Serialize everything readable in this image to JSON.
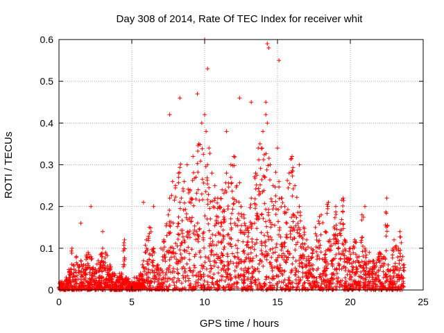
{
  "chart_data": {
    "type": "scatter",
    "title": "Day 308 of 2014, Rate Of TEC Index for receiver whit",
    "xlabel": "GPS time / hours",
    "ylabel": "ROTI / TECUs",
    "xlim": [
      0,
      25
    ],
    "ylim": [
      0,
      0.6
    ],
    "xticks": [
      0,
      5,
      10,
      15,
      20,
      25
    ],
    "yticks": [
      0,
      0.1,
      0.2,
      0.3,
      0.4,
      0.5,
      0.6
    ],
    "xtick_labels": [
      "0",
      "5",
      "10",
      "15",
      "20",
      "25"
    ],
    "ytick_labels": [
      "0",
      "0.1",
      "0.2",
      "0.3",
      "0.4",
      "0.5",
      "0.6"
    ],
    "grid": true,
    "marker": "+",
    "marker_color": "#ff0000",
    "series": [
      {
        "name": "ROTI",
        "x": [
          0.2,
          0.5,
          0.8,
          1.0,
          1.2,
          1.5,
          1.7,
          2.0,
          2.2,
          2.5,
          2.7,
          3.0,
          3.2,
          3.5,
          3.7,
          4.0,
          4.3,
          4.6,
          5.0,
          5.3,
          5.6,
          5.8,
          6.0,
          6.2,
          6.5,
          6.8,
          7.0,
          7.2,
          7.5,
          7.6,
          7.8,
          8.0,
          8.2,
          8.4,
          8.6,
          8.8,
          9.0,
          9.2,
          9.4,
          9.6,
          9.8,
          10.0,
          10.1,
          10.2,
          10.3,
          10.5,
          10.7,
          10.9,
          11.0,
          11.2,
          11.5,
          11.8,
          12.0,
          12.2,
          12.5,
          12.7,
          13.0,
          13.2,
          13.5,
          13.8,
          14.0,
          14.2,
          14.3,
          14.5,
          14.7,
          15.0,
          15.1,
          15.3,
          15.5,
          15.8,
          16.0,
          16.2,
          16.5,
          16.8,
          17.0,
          17.3,
          17.6,
          18.0,
          18.3,
          18.6,
          19.0,
          19.3,
          19.6,
          20.0,
          20.3,
          20.6,
          21.0,
          21.3,
          21.6,
          22.0,
          22.3,
          22.6,
          23.0,
          23.3,
          23.6,
          2.2,
          7.6,
          8.3,
          10.0,
          12.4,
          14.3,
          14.4,
          15.1,
          14.2,
          10.2,
          1.5,
          3.0,
          4.5,
          6.5,
          9.5,
          11.5,
          13.2,
          16.5,
          18.5,
          21.0,
          22.5,
          0.9,
          5.8,
          7.0,
          19.5,
          20.8,
          23.4
        ],
        "y": [
          0.02,
          0.03,
          0.05,
          0.06,
          0.08,
          0.07,
          0.06,
          0.09,
          0.08,
          0.05,
          0.07,
          0.1,
          0.09,
          0.06,
          0.04,
          0.03,
          0.04,
          0.03,
          0.02,
          0.03,
          0.04,
          0.07,
          0.12,
          0.15,
          0.1,
          0.06,
          0.05,
          0.12,
          0.18,
          0.22,
          0.26,
          0.25,
          0.28,
          0.22,
          0.26,
          0.3,
          0.24,
          0.32,
          0.27,
          0.35,
          0.4,
          0.42,
          0.38,
          0.3,
          0.34,
          0.28,
          0.25,
          0.22,
          0.2,
          0.24,
          0.28,
          0.3,
          0.32,
          0.25,
          0.2,
          0.18,
          0.15,
          0.22,
          0.28,
          0.35,
          0.38,
          0.42,
          0.4,
          0.3,
          0.25,
          0.34,
          0.26,
          0.22,
          0.2,
          0.28,
          0.32,
          0.25,
          0.2,
          0.15,
          0.12,
          0.1,
          0.15,
          0.18,
          0.14,
          0.12,
          0.2,
          0.16,
          0.12,
          0.1,
          0.12,
          0.08,
          0.1,
          0.09,
          0.07,
          0.09,
          0.08,
          0.06,
          0.12,
          0.1,
          0.08,
          0.2,
          0.42,
          0.46,
          0.6,
          0.46,
          0.59,
          0.58,
          0.55,
          0.45,
          0.53,
          0.16,
          0.14,
          0.12,
          0.2,
          0.47,
          0.38,
          0.45,
          0.3,
          0.21,
          0.2,
          0.22,
          0.1,
          0.21,
          0.1,
          0.22,
          0.18,
          0.14
        ]
      }
    ]
  }
}
